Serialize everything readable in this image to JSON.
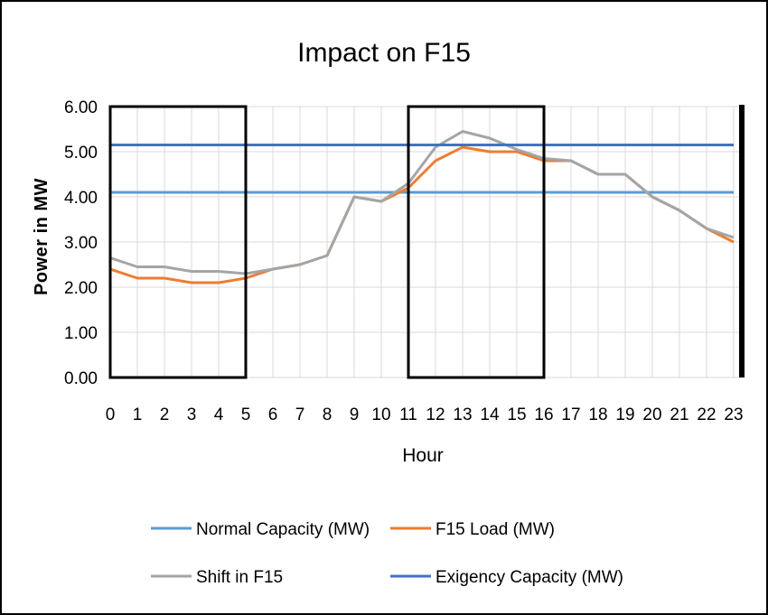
{
  "chart_data": {
    "type": "line",
    "title": "Impact on F15",
    "xlabel": "Hour",
    "ylabel": "Power in MW",
    "ylim": [
      0,
      6
    ],
    "y_ticks": [
      "0.00",
      "1.00",
      "2.00",
      "3.00",
      "4.00",
      "5.00",
      "6.00"
    ],
    "categories": [
      "0",
      "1",
      "2",
      "3",
      "4",
      "5",
      "6",
      "7",
      "8",
      "9",
      "10",
      "11",
      "12",
      "13",
      "14",
      "15",
      "16",
      "17",
      "18",
      "19",
      "20",
      "21",
      "22",
      "23"
    ],
    "grid": true,
    "legend_position": "bottom",
    "series": [
      {
        "name": "Normal Capacity (MW)",
        "color": "#5B9BD5",
        "values": [
          4.1,
          4.1,
          4.1,
          4.1,
          4.1,
          4.1,
          4.1,
          4.1,
          4.1,
          4.1,
          4.1,
          4.1,
          4.1,
          4.1,
          4.1,
          4.1,
          4.1,
          4.1,
          4.1,
          4.1,
          4.1,
          4.1,
          4.1,
          4.1
        ]
      },
      {
        "name": "F15 Load (MW)",
        "color": "#ED7D31",
        "values": [
          2.4,
          2.2,
          2.2,
          2.1,
          2.1,
          2.2,
          2.4,
          2.5,
          2.7,
          4.0,
          3.9,
          4.2,
          4.8,
          5.1,
          5.0,
          5.0,
          4.8,
          4.8,
          4.5,
          4.5,
          4.0,
          3.7,
          3.3,
          3.0
        ]
      },
      {
        "name": "Shift in F15",
        "color": "#A5A5A5",
        "values": [
          2.65,
          2.45,
          2.45,
          2.35,
          2.35,
          2.3,
          2.4,
          2.5,
          2.7,
          4.0,
          3.9,
          4.3,
          5.1,
          5.45,
          5.3,
          5.05,
          4.85,
          4.8,
          4.5,
          4.5,
          4.0,
          3.7,
          3.3,
          3.1
        ]
      },
      {
        "name": "Exigency Capacity (MW)",
        "color": "#4472C4",
        "values": [
          5.15,
          5.15,
          5.15,
          5.15,
          5.15,
          5.15,
          5.15,
          5.15,
          5.15,
          5.15,
          5.15,
          5.15,
          5.15,
          5.15,
          5.15,
          5.15,
          5.15,
          5.15,
          5.15,
          5.15,
          5.15,
          5.15,
          5.15,
          5.15
        ]
      }
    ],
    "highlight_boxes": [
      {
        "from_hour": 0,
        "to_hour": 5,
        "from_value": 0,
        "to_value": 6
      },
      {
        "from_hour": 11,
        "to_hour": 16,
        "from_value": 0,
        "to_value": 6
      }
    ],
    "right_marker_hour": 23.3
  }
}
